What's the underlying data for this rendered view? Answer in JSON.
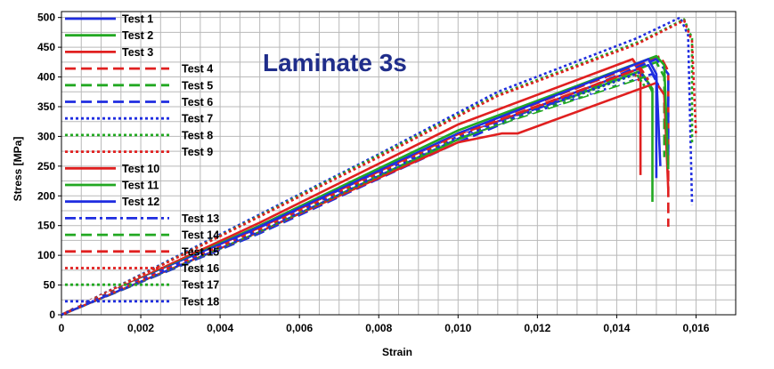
{
  "chart_data": {
    "type": "line",
    "title": "Laminate 3s",
    "xlabel": "Strain",
    "ylabel": "Stress [MPa]",
    "xlim": [
      0,
      0.017
    ],
    "ylim": [
      0,
      510
    ],
    "xticks": [
      0,
      0.002,
      0.004,
      0.006,
      0.008,
      0.01,
      0.012,
      0.014,
      0.016
    ],
    "xtick_labels": [
      "0",
      "0,002",
      "0,004",
      "0,006",
      "0,008",
      "0,010",
      "0,012",
      "0,014",
      "0,016"
    ],
    "yticks": [
      0,
      50,
      100,
      150,
      200,
      250,
      300,
      350,
      400,
      450,
      500
    ],
    "ytick_labels": [
      "0",
      "50",
      "100",
      "150",
      "200",
      "250",
      "300",
      "350",
      "400",
      "450",
      "500"
    ],
    "grid": true,
    "legend_position": "top-left",
    "colors": {
      "blue": "#1f2de0",
      "green": "#22a822",
      "red": "#e02020",
      "title": "#1f2d8a"
    },
    "series": [
      {
        "name": "Test 1",
        "color": "blue",
        "dash": "solid",
        "x": [
          0,
          0.005,
          0.01,
          0.0148,
          0.015,
          0.015
        ],
        "y": [
          0,
          145,
          300,
          420,
          395,
          230
        ]
      },
      {
        "name": "Test 2",
        "color": "green",
        "dash": "solid",
        "x": [
          0,
          0.005,
          0.01,
          0.0146,
          0.0149,
          0.0149
        ],
        "y": [
          0,
          140,
          295,
          410,
          380,
          190
        ]
      },
      {
        "name": "Test 3",
        "color": "red",
        "dash": "solid",
        "x": [
          0,
          0.005,
          0.01,
          0.0144,
          0.0146,
          0.0146
        ],
        "y": [
          0,
          155,
          320,
          430,
          410,
          235
        ]
      },
      {
        "name": "Test 4",
        "color": "red",
        "dash": "dash",
        "x": [
          0,
          0.005,
          0.01,
          0.0151,
          0.0153,
          0.0153
        ],
        "y": [
          0,
          143,
          305,
          435,
          410,
          148
        ]
      },
      {
        "name": "Test 5",
        "color": "green",
        "dash": "dash",
        "x": [
          0,
          0.005,
          0.01,
          0.015,
          0.0152,
          0.0152
        ],
        "y": [
          0,
          138,
          295,
          425,
          400,
          265
        ]
      },
      {
        "name": "Test 6",
        "color": "blue",
        "dash": "dash",
        "x": [
          0,
          0.005,
          0.01,
          0.015,
          0.0153,
          0.0153
        ],
        "y": [
          0,
          137,
          290,
          430,
          405,
          260
        ]
      },
      {
        "name": "Test 7",
        "color": "blue",
        "dash": "dot",
        "x": [
          0,
          0.004,
          0.008,
          0.011,
          0.0145,
          0.0156,
          0.0158,
          0.0159
        ],
        "y": [
          0,
          135,
          270,
          375,
          465,
          500,
          470,
          185
        ]
      },
      {
        "name": "Test 8",
        "color": "green",
        "dash": "dot",
        "x": [
          0,
          0.004,
          0.008,
          0.011,
          0.0146,
          0.0157,
          0.0159,
          0.0159
        ],
        "y": [
          0,
          133,
          268,
          370,
          460,
          497,
          465,
          290
        ]
      },
      {
        "name": "Test 9",
        "color": "red",
        "dash": "dot",
        "x": [
          0,
          0.004,
          0.008,
          0.011,
          0.0145,
          0.0157,
          0.0159,
          0.016
        ],
        "y": [
          0,
          132,
          265,
          368,
          455,
          495,
          460,
          300
        ]
      },
      {
        "name": "Test 10",
        "color": "red",
        "dash": "solid",
        "x": [
          0,
          0.005,
          0.01,
          0.0111,
          0.0115,
          0.015,
          0.0152,
          0.0153
        ],
        "y": [
          0,
          140,
          290,
          305,
          305,
          390,
          370,
          210
        ]
      },
      {
        "name": "Test 11",
        "color": "green",
        "dash": "solid",
        "x": [
          0,
          0.005,
          0.01,
          0.015,
          0.0152,
          0.0153
        ],
        "y": [
          0,
          150,
          310,
          435,
          420,
          245
        ]
      },
      {
        "name": "Test 12",
        "color": "blue",
        "dash": "solid",
        "x": [
          0,
          0.005,
          0.01,
          0.0148,
          0.015,
          0.0151
        ],
        "y": [
          0,
          148,
          305,
          430,
          405,
          250
        ]
      },
      {
        "name": "Test 13",
        "color": "blue",
        "dash": "dashdot",
        "x": [
          0,
          0.005,
          0.01,
          0.0149,
          0.0151
        ],
        "y": [
          0,
          142,
          300,
          405,
          380
        ]
      },
      {
        "name": "Test 14",
        "color": "green",
        "dash": "dash",
        "x": [
          0,
          0.005,
          0.01,
          0.0147,
          0.0149
        ],
        "y": [
          0,
          141,
          298,
          400,
          375
        ]
      },
      {
        "name": "Test 15",
        "color": "red",
        "dash": "dash",
        "x": [
          0,
          0.005,
          0.01,
          0.0146,
          0.0148
        ],
        "y": [
          0,
          144,
          302,
          415,
          395
        ]
      },
      {
        "name": "Test 16",
        "color": "red",
        "dash": "dot",
        "x": [
          0,
          0.005,
          0.01,
          0.0144,
          0.0146
        ],
        "y": [
          0,
          143,
          300,
          410,
          390
        ]
      },
      {
        "name": "Test 17",
        "color": "green",
        "dash": "dot",
        "x": [
          0,
          0.005,
          0.01,
          0.0145,
          0.0147
        ],
        "y": [
          0,
          139,
          296,
          405,
          385
        ]
      },
      {
        "name": "Test 18",
        "color": "blue",
        "dash": "dot",
        "x": [
          0,
          0.005,
          0.01,
          0.0146,
          0.0148
        ],
        "y": [
          0,
          140,
          298,
          408,
          388
        ]
      }
    ]
  }
}
